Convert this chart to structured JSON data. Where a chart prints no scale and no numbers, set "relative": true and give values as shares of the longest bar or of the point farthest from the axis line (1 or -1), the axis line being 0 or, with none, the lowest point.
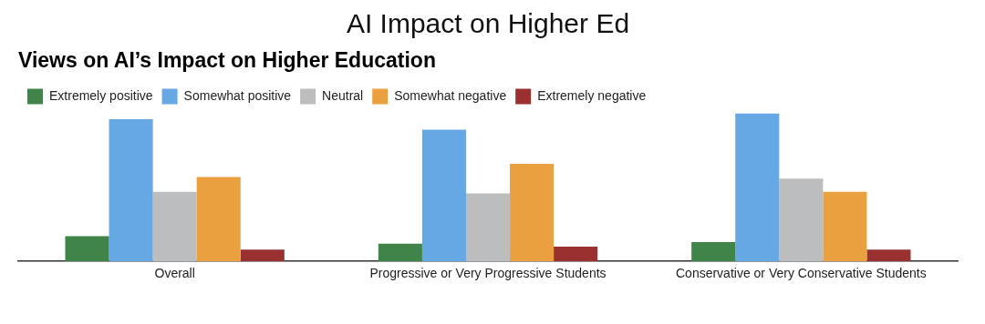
{
  "chart_data": {
    "type": "bar",
    "title": "AI Impact on Higher Ed",
    "subtitle": "Views on AI’s Impact on Higher Education",
    "relative": true,
    "grid": false,
    "legend": "top left",
    "categories": [
      "Overall",
      "Progressive or Very Progressive Students",
      "Conservative or Very Conservative Students"
    ],
    "series": [
      {
        "name": "Extremely positive",
        "color": "#40844a",
        "values": [
          0.17,
          0.12,
          0.13
        ]
      },
      {
        "name": "Somewhat positive",
        "color": "#66a8e4",
        "values": [
          0.96,
          0.89,
          1
        ]
      },
      {
        "name": "Neutral",
        "color": "#bcbdbf",
        "values": [
          0.47,
          0.46,
          0.56
        ]
      },
      {
        "name": "Somewhat negative",
        "color": "#eba040",
        "values": [
          0.57,
          0.66,
          0.47
        ]
      },
      {
        "name": "Extremely negative",
        "color": "#9a3131",
        "values": [
          0.08,
          0.1,
          0.08
        ]
      }
    ]
  }
}
